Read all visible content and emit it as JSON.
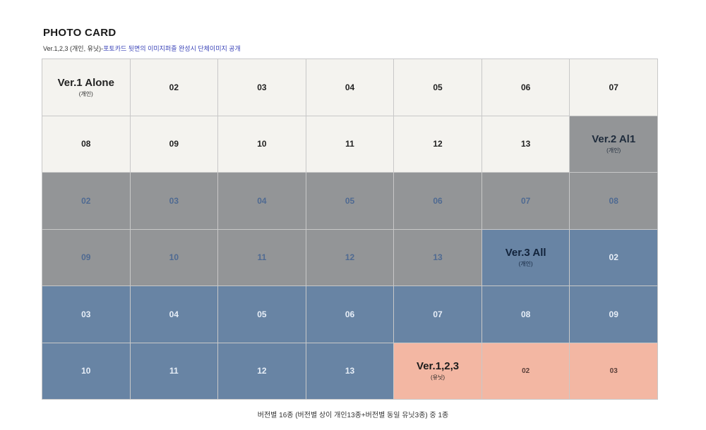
{
  "header": {
    "title": "PHOTO CARD",
    "subtitle_prefix": "Ver.1,2,3 (개인, 유닛)-",
    "subtitle_highlight": "포토카드 뒷면의 이미지퍼즐 완성시 단체이미지 공개"
  },
  "colors": {
    "light": "#f4f3ef",
    "gray": "#939597",
    "blue": "#6884a4",
    "peach": "#f3b7a3",
    "highlight_text": "#3a43b8"
  },
  "grid": {
    "columns": 7,
    "cells": [
      {
        "label": "Ver.1 Alone",
        "sub": "(개인)",
        "tone": "light",
        "header": true
      },
      {
        "label": "02",
        "tone": "light"
      },
      {
        "label": "03",
        "tone": "light"
      },
      {
        "label": "04",
        "tone": "light"
      },
      {
        "label": "05",
        "tone": "light"
      },
      {
        "label": "06",
        "tone": "light"
      },
      {
        "label": "07",
        "tone": "light"
      },
      {
        "label": "08",
        "tone": "light"
      },
      {
        "label": "09",
        "tone": "light"
      },
      {
        "label": "10",
        "tone": "light"
      },
      {
        "label": "11",
        "tone": "light"
      },
      {
        "label": "12",
        "tone": "light"
      },
      {
        "label": "13",
        "tone": "light"
      },
      {
        "label": "Ver.2 Al1",
        "sub": "(개인)",
        "tone": "gray",
        "header": true
      },
      {
        "label": "02",
        "tone": "gray"
      },
      {
        "label": "03",
        "tone": "gray"
      },
      {
        "label": "04",
        "tone": "gray"
      },
      {
        "label": "05",
        "tone": "gray"
      },
      {
        "label": "06",
        "tone": "gray"
      },
      {
        "label": "07",
        "tone": "gray"
      },
      {
        "label": "08",
        "tone": "gray"
      },
      {
        "label": "09",
        "tone": "gray"
      },
      {
        "label": "10",
        "tone": "gray"
      },
      {
        "label": "11",
        "tone": "gray"
      },
      {
        "label": "12",
        "tone": "gray"
      },
      {
        "label": "13",
        "tone": "gray"
      },
      {
        "label": "Ver.3 All",
        "sub": "(개인)",
        "tone": "blue",
        "header": true
      },
      {
        "label": "02",
        "tone": "blue"
      },
      {
        "label": "03",
        "tone": "blue"
      },
      {
        "label": "04",
        "tone": "blue"
      },
      {
        "label": "05",
        "tone": "blue"
      },
      {
        "label": "06",
        "tone": "blue"
      },
      {
        "label": "07",
        "tone": "blue"
      },
      {
        "label": "08",
        "tone": "blue"
      },
      {
        "label": "09",
        "tone": "blue"
      },
      {
        "label": "10",
        "tone": "blue"
      },
      {
        "label": "11",
        "tone": "blue"
      },
      {
        "label": "12",
        "tone": "blue"
      },
      {
        "label": "13",
        "tone": "blue"
      },
      {
        "label": "Ver.1,2,3",
        "sub": "(유닛)",
        "tone": "peach",
        "header": true
      },
      {
        "label": "02",
        "tone": "peach"
      },
      {
        "label": "03",
        "tone": "peach"
      }
    ]
  },
  "footer": {
    "note": "버전별 16종 (버전별 상이 개인13종+버전별 동일 유닛3종) 중 1종"
  }
}
